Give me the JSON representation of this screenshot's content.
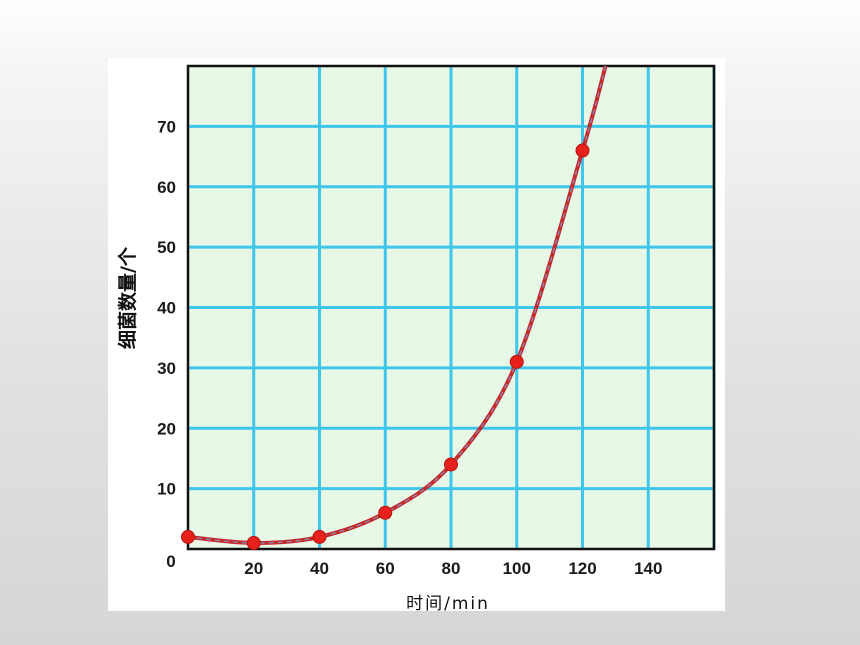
{
  "colors": {
    "plot_background": "#e8f8e6",
    "grid": "#3fc6ea",
    "frame": "#111111",
    "curve": "#c42a2a",
    "curve_dash": "#8a8fc7",
    "marker": "#e8211d"
  },
  "chart_data": {
    "type": "line",
    "title": "",
    "xlabel": "时间/min",
    "ylabel": "细菌数量/个",
    "origin_label": "0",
    "xlim": [
      0,
      160
    ],
    "ylim": [
      0,
      80
    ],
    "x_ticks": [
      20,
      40,
      60,
      80,
      100,
      120,
      140
    ],
    "x_tick_labels": [
      "20",
      "40",
      "60",
      "80",
      "100",
      "120",
      "140"
    ],
    "y_ticks": [
      10,
      20,
      30,
      40,
      50,
      60,
      70
    ],
    "y_tick_labels": [
      "10",
      "20",
      "30",
      "40",
      "50",
      "60",
      "70"
    ],
    "grid": true,
    "legend": "none",
    "series": [
      {
        "x": [
          0,
          20,
          40,
          60,
          80,
          100,
          120
        ],
        "values": [
          2,
          1,
          2,
          6,
          14,
          31,
          66
        ],
        "curve_end": {
          "x": 127,
          "y": 80
        }
      }
    ]
  }
}
